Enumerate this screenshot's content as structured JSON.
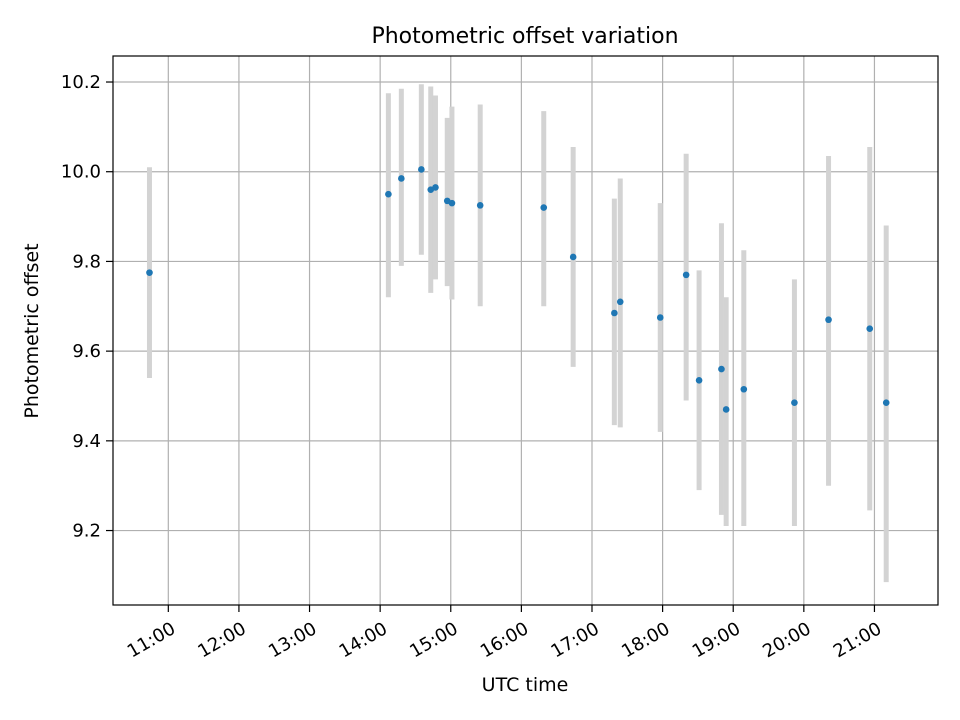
{
  "chart_data": {
    "type": "scatter",
    "title": "Photometric offset variation",
    "xlabel": "UTC time",
    "ylabel": "Photometric offset",
    "x_tick_labels": [
      "11:00",
      "12:00",
      "13:00",
      "14:00",
      "15:00",
      "16:00",
      "17:00",
      "18:00",
      "19:00",
      "20:00",
      "21:00"
    ],
    "x_tick_hours": [
      11,
      12,
      13,
      14,
      15,
      16,
      17,
      18,
      19,
      20,
      21
    ],
    "y_ticks": [
      9.2,
      9.4,
      9.6,
      9.8,
      10.0,
      10.2
    ],
    "y_tick_labels": [
      "9.2",
      "9.4",
      "9.6",
      "9.8",
      "10.0",
      "10.2"
    ],
    "xlim": [
      "10:13",
      "21:54"
    ],
    "ylim": [
      9.034,
      10.258
    ],
    "grid": true,
    "colors": {
      "point": "#1f77b4",
      "errorbar": "#d3d3d3",
      "grid": "#b0b0b0"
    },
    "points": [
      {
        "t": "10:44",
        "y": 9.775,
        "lo": 9.54,
        "hi": 10.01
      },
      {
        "t": "14:07",
        "y": 9.95,
        "lo": 9.72,
        "hi": 10.175
      },
      {
        "t": "14:18",
        "y": 9.985,
        "lo": 9.79,
        "hi": 10.185
      },
      {
        "t": "14:35",
        "y": 10.005,
        "lo": 9.815,
        "hi": 10.195
      },
      {
        "t": "14:43",
        "y": 9.96,
        "lo": 9.73,
        "hi": 10.19
      },
      {
        "t": "14:47",
        "y": 9.965,
        "lo": 9.76,
        "hi": 10.17
      },
      {
        "t": "14:57",
        "y": 9.935,
        "lo": 9.745,
        "hi": 10.12
      },
      {
        "t": "15:01",
        "y": 9.93,
        "lo": 9.715,
        "hi": 10.145
      },
      {
        "t": "15:25",
        "y": 9.925,
        "lo": 9.7,
        "hi": 10.15
      },
      {
        "t": "16:19",
        "y": 9.92,
        "lo": 9.7,
        "hi": 10.135
      },
      {
        "t": "16:44",
        "y": 9.81,
        "lo": 9.565,
        "hi": 10.055
      },
      {
        "t": "17:19",
        "y": 9.685,
        "lo": 9.435,
        "hi": 9.94
      },
      {
        "t": "17:24",
        "y": 9.71,
        "lo": 9.43,
        "hi": 9.985
      },
      {
        "t": "17:58",
        "y": 9.675,
        "lo": 9.42,
        "hi": 9.93
      },
      {
        "t": "18:20",
        "y": 9.77,
        "lo": 9.49,
        "hi": 10.04
      },
      {
        "t": "18:31",
        "y": 9.535,
        "lo": 9.29,
        "hi": 9.78
      },
      {
        "t": "18:50",
        "y": 9.56,
        "lo": 9.235,
        "hi": 9.885
      },
      {
        "t": "18:54",
        "y": 9.47,
        "lo": 9.21,
        "hi": 9.72
      },
      {
        "t": "19:09",
        "y": 9.515,
        "lo": 9.21,
        "hi": 9.825
      },
      {
        "t": "19:52",
        "y": 9.485,
        "lo": 9.21,
        "hi": 9.76
      },
      {
        "t": "20:21",
        "y": 9.67,
        "lo": 9.3,
        "hi": 10.035
      },
      {
        "t": "20:56",
        "y": 9.65,
        "lo": 9.245,
        "hi": 10.055
      },
      {
        "t": "21:10",
        "y": 9.485,
        "lo": 9.085,
        "hi": 9.88
      }
    ]
  }
}
